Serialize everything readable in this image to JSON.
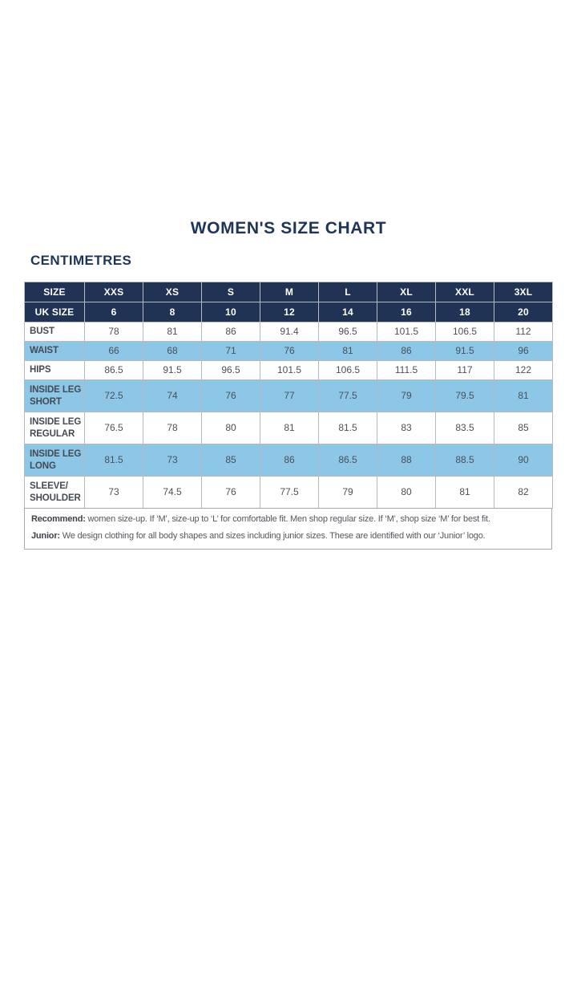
{
  "page": {
    "title": "WOMEN'S SIZE CHART",
    "units_label": "CENTIMETRES"
  },
  "colors": {
    "header_navy": "#203354",
    "shaded_row_blue": "#8cc7e8",
    "title_navy": "#1f3557",
    "grid_line": "#b6b9bd"
  },
  "table": {
    "header_rows": [
      {
        "label": "SIZE",
        "values": [
          "XXS",
          "XS",
          "S",
          "M",
          "L",
          "XL",
          "XXL",
          "3XL"
        ]
      },
      {
        "label": "UK SIZE",
        "values": [
          "6",
          "8",
          "10",
          "12",
          "14",
          "16",
          "18",
          "20"
        ]
      }
    ],
    "rows": [
      {
        "label": "BUST",
        "shaded": false,
        "tall": false,
        "values": [
          "78",
          "81",
          "86",
          "91.4",
          "96.5",
          "101.5",
          "106.5",
          "112"
        ]
      },
      {
        "label": "WAIST",
        "shaded": true,
        "tall": false,
        "values": [
          "66",
          "68",
          "71",
          "76",
          "81",
          "86",
          "91.5",
          "96"
        ]
      },
      {
        "label": "HIPS",
        "shaded": false,
        "tall": false,
        "values": [
          "86.5",
          "91.5",
          "96.5",
          "101.5",
          "106.5",
          "111.5",
          "117",
          "122"
        ]
      },
      {
        "label": "INSIDE LEG\nSHORT",
        "shaded": true,
        "tall": true,
        "values": [
          "72.5",
          "74",
          "76",
          "77",
          "77.5",
          "79",
          "79.5",
          "81"
        ]
      },
      {
        "label": "INSIDE LEG\nREGULAR",
        "shaded": false,
        "tall": true,
        "values": [
          "76.5",
          "78",
          "80",
          "81",
          "81.5",
          "83",
          "83.5",
          "85"
        ]
      },
      {
        "label": "INSIDE LEG\nLONG",
        "shaded": true,
        "tall": true,
        "values": [
          "81.5",
          "73",
          "85",
          "86",
          "86.5",
          "88",
          "88.5",
          "90"
        ]
      },
      {
        "label": "SLEEVE/\nSHOULDER",
        "shaded": false,
        "tall": true,
        "values": [
          "73",
          "74.5",
          "76",
          "77.5",
          "79",
          "80",
          "81",
          "82"
        ]
      }
    ]
  },
  "notes": {
    "lines": [
      {
        "label": "Recommend:",
        "text": " women size-up. If ‘M’, size-up to ‘L’ for comfortable fit. Men shop regular size. If ‘M’, shop size ‘M’ for best fit."
      },
      {
        "label": "Junior:",
        "text": " We design clothing for all body shapes and sizes including junior sizes. These are identified with our ‘Junior’ logo."
      }
    ]
  }
}
